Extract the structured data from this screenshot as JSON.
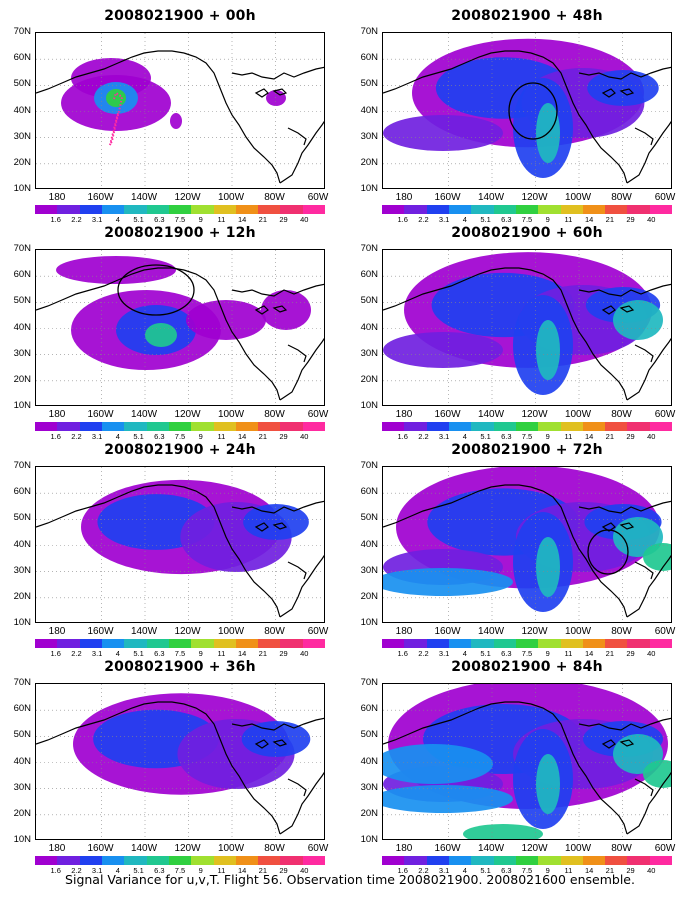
{
  "panels": [
    {
      "id": "p00",
      "title": "2008021900 + 00h",
      "has_track": true,
      "has_circle": false,
      "intensity": 0
    },
    {
      "id": "p48",
      "title": "2008021900 + 48h",
      "has_track": false,
      "has_circle": true,
      "intensity": 48
    },
    {
      "id": "p12",
      "title": "2008021900 + 12h",
      "has_track": false,
      "has_circle": true,
      "intensity": 12
    },
    {
      "id": "p60",
      "title": "2008021900 + 60h",
      "has_track": false,
      "has_circle": false,
      "intensity": 60
    },
    {
      "id": "p24",
      "title": "2008021900 + 24h",
      "has_track": false,
      "has_circle": false,
      "intensity": 24
    },
    {
      "id": "p72",
      "title": "2008021900 + 72h",
      "has_track": false,
      "has_circle": true,
      "intensity": 72
    },
    {
      "id": "p36",
      "title": "2008021900 + 36h",
      "has_track": false,
      "has_circle": false,
      "intensity": 36
    },
    {
      "id": "p84",
      "title": "2008021900 + 84h",
      "has_track": false,
      "has_circle": false,
      "intensity": 84
    }
  ],
  "axes": {
    "lat_labels": [
      "70N",
      "60N",
      "50N",
      "40N",
      "30N",
      "20N",
      "10N"
    ],
    "lon_labels": [
      "180",
      "160W",
      "140W",
      "120W",
      "100W",
      "80W",
      "60W"
    ]
  },
  "colorbar": {
    "colors": [
      "#a000d0",
      "#7020e0",
      "#2040f0",
      "#1890f0",
      "#20b8c0",
      "#20c890",
      "#30d040",
      "#a0e030",
      "#e0c020",
      "#f09018",
      "#f05040",
      "#f03070",
      "#ff2aa0"
    ],
    "labels": [
      "1.6",
      "2.2",
      "3.1",
      "4",
      "5.1",
      "6.3",
      "7.5",
      "9",
      "11",
      "14",
      "21",
      "29",
      "40"
    ]
  },
  "caption": "Signal Variance for u,v,T. Flight 56. Observation time 2008021900. 2008021600 ensemble."
}
